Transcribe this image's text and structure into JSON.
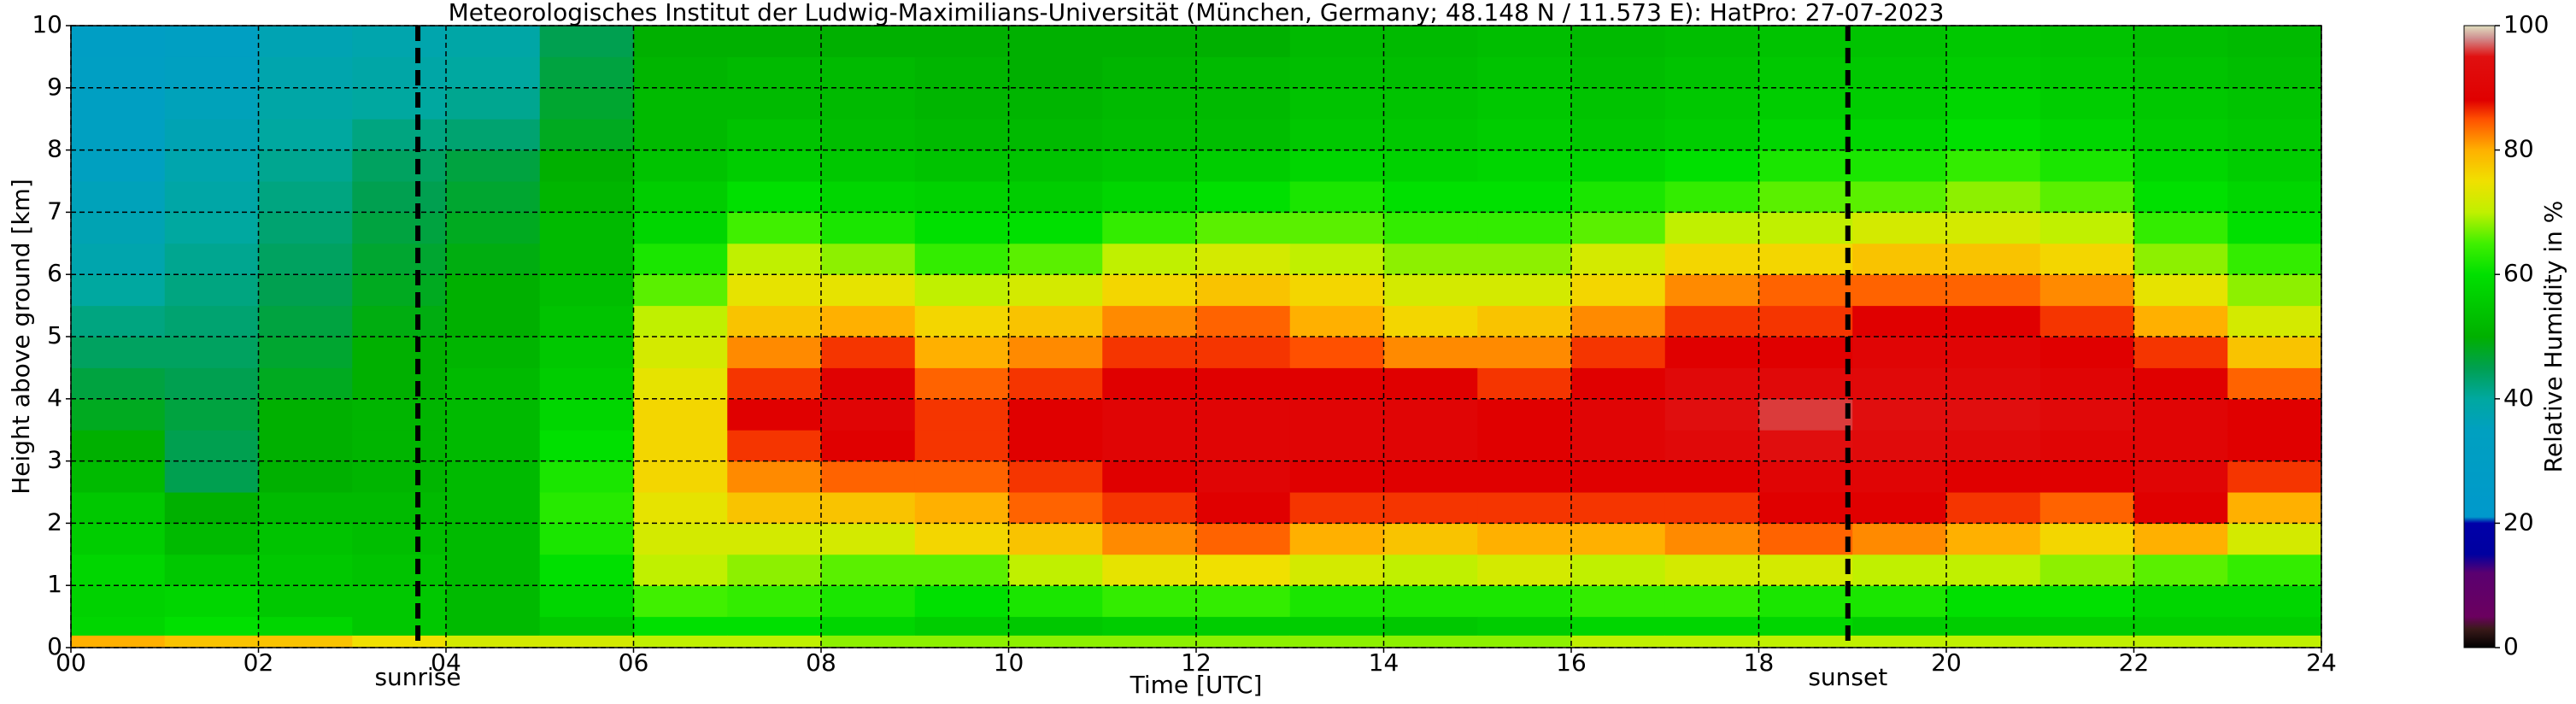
{
  "chart_data": {
    "type": "heatmap",
    "title": "Meteorologisches Institut der Ludwig-Maximilians-Universität (München, Germany; 48.148 N / 11.573 E):    HatPro: 27-07-2023",
    "x_label": "Time [UTC]",
    "y_label": "Height above ground [km]",
    "colorbar_label": "Relative Humidity in %",
    "x": [
      0,
      1,
      2,
      3,
      4,
      5,
      6,
      7,
      8,
      9,
      10,
      11,
      12,
      13,
      14,
      15,
      16,
      17,
      18,
      19,
      20,
      21,
      22,
      23,
      24
    ],
    "y": [
      0,
      0.2,
      0.5,
      1,
      1.5,
      2,
      2.5,
      3,
      3.5,
      4,
      4.5,
      5,
      5.5,
      6,
      6.5,
      7,
      7.5,
      8,
      8.5,
      9,
      9.5,
      10
    ],
    "z": [
      [
        80,
        58,
        57,
        58,
        56,
        55,
        52,
        50,
        48,
        46,
        44,
        42,
        40,
        38,
        37,
        36,
        35,
        34,
        33,
        32,
        30
      ],
      [
        78,
        60,
        58,
        55,
        52,
        50,
        45,
        45,
        46,
        45,
        44,
        43,
        42,
        41,
        40,
        39,
        38,
        37,
        36,
        35,
        33
      ],
      [
        78,
        58,
        55,
        55,
        54,
        52,
        50,
        50,
        50,
        48,
        47,
        46,
        45,
        44,
        43,
        42,
        41,
        40,
        39,
        38,
        37
      ],
      [
        75,
        55,
        55,
        54,
        53,
        52,
        51,
        51,
        51,
        50,
        50,
        49,
        48,
        47,
        46,
        45,
        44,
        42,
        40,
        39,
        38
      ],
      [
        72,
        52,
        52,
        52,
        52,
        52,
        52,
        52,
        52,
        52,
        51,
        50,
        50,
        49,
        48,
        47,
        46,
        43,
        41,
        40,
        39
      ],
      [
        72,
        55,
        58,
        60,
        62,
        63,
        62,
        60,
        58,
        56,
        55,
        54,
        53,
        52,
        52,
        51,
        50,
        48,
        47,
        46,
        45
      ],
      [
        70,
        60,
        65,
        70,
        72,
        74,
        76,
        76,
        76,
        74,
        72,
        70,
        66,
        62,
        58,
        56,
        54,
        52,
        52,
        51,
        50
      ],
      [
        70,
        60,
        64,
        68,
        72,
        78,
        82,
        86,
        88,
        86,
        82,
        78,
        74,
        70,
        65,
        60,
        56,
        54,
        52,
        52,
        50
      ],
      [
        68,
        58,
        62,
        66,
        72,
        78,
        84,
        88,
        90,
        89,
        86,
        80,
        74,
        68,
        62,
        58,
        55,
        53,
        52,
        52,
        50
      ],
      [
        68,
        56,
        60,
        66,
        76,
        80,
        84,
        86,
        86,
        84,
        80,
        76,
        70,
        64,
        60,
        57,
        54,
        52,
        51,
        51,
        50
      ],
      [
        68,
        55,
        62,
        70,
        78,
        84,
        86,
        88,
        88,
        86,
        82,
        78,
        72,
        66,
        60,
        56,
        54,
        52,
        51,
        50,
        50
      ],
      [
        68,
        56,
        64,
        74,
        82,
        86,
        88,
        90,
        90,
        88,
        86,
        82,
        76,
        70,
        64,
        58,
        55,
        53,
        52,
        51,
        50
      ],
      [
        68,
        56,
        64,
        75,
        84,
        88,
        90,
        90,
        90,
        88,
        86,
        84,
        78,
        72,
        66,
        60,
        56,
        53,
        52,
        52,
        50
      ],
      [
        68,
        56,
        62,
        72,
        80,
        86,
        88,
        90,
        90,
        88,
        85,
        80,
        76,
        70,
        66,
        62,
        58,
        55,
        54,
        53,
        52
      ],
      [
        68,
        55,
        62,
        70,
        78,
        86,
        88,
        90,
        90,
        88,
        82,
        76,
        72,
        68,
        64,
        60,
        57,
        55,
        54,
        53,
        52
      ],
      [
        68,
        56,
        62,
        72,
        80,
        86,
        88,
        88,
        88,
        86,
        82,
        78,
        72,
        68,
        64,
        60,
        58,
        56,
        55,
        54,
        53
      ],
      [
        70,
        58,
        64,
        70,
        80,
        86,
        88,
        90,
        90,
        88,
        86,
        82,
        76,
        72,
        66,
        62,
        58,
        55,
        54,
        53,
        52
      ],
      [
        70,
        58,
        64,
        72,
        82,
        86,
        88,
        92,
        94,
        92,
        88,
        86,
        82,
        76,
        70,
        64,
        60,
        56,
        55,
        54,
        53
      ],
      [
        70,
        58,
        62,
        72,
        84,
        88,
        90,
        94,
        96,
        92,
        88,
        86,
        84,
        76,
        70,
        66,
        62,
        58,
        56,
        55,
        54
      ],
      [
        70,
        56,
        62,
        70,
        82,
        88,
        90,
        93,
        94,
        92,
        90,
        88,
        84,
        78,
        72,
        66,
        62,
        58,
        56,
        55,
        54
      ],
      [
        70,
        56,
        60,
        70,
        80,
        86,
        88,
        92,
        94,
        92,
        90,
        88,
        84,
        78,
        72,
        68,
        64,
        60,
        58,
        56,
        55
      ],
      [
        70,
        56,
        60,
        68,
        76,
        84,
        88,
        90,
        92,
        90,
        88,
        86,
        82,
        76,
        70,
        66,
        62,
        58,
        56,
        55,
        54
      ],
      [
        70,
        56,
        58,
        66,
        80,
        88,
        90,
        90,
        90,
        88,
        86,
        80,
        74,
        68,
        64,
        60,
        58,
        56,
        55,
        54,
        53
      ],
      [
        70,
        56,
        58,
        64,
        72,
        80,
        86,
        88,
        88,
        84,
        78,
        72,
        68,
        64,
        60,
        58,
        56,
        55,
        54,
        53,
        52
      ]
    ],
    "xlim": [
      0,
      24
    ],
    "xticks": [
      {
        "value": 0,
        "label": "00"
      },
      {
        "value": 2,
        "label": "02"
      },
      {
        "value": 4,
        "label": "04"
      },
      {
        "value": 6,
        "label": "06"
      },
      {
        "value": 8,
        "label": "08"
      },
      {
        "value": 10,
        "label": "10"
      },
      {
        "value": 12,
        "label": "12"
      },
      {
        "value": 14,
        "label": "14"
      },
      {
        "value": 16,
        "label": "16"
      },
      {
        "value": 18,
        "label": "18"
      },
      {
        "value": 20,
        "label": "20"
      },
      {
        "value": 22,
        "label": "22"
      },
      {
        "value": 24,
        "label": "24"
      }
    ],
    "ylim": [
      0,
      10
    ],
    "yticks": [
      0,
      1,
      2,
      3,
      4,
      5,
      6,
      7,
      8,
      9,
      10
    ],
    "clim": [
      0,
      100
    ],
    "cticks": [
      0,
      20,
      40,
      60,
      80,
      100
    ],
    "colorscale": [
      [
        0,
        "#000000"
      ],
      [
        3,
        "#3a1a1a"
      ],
      [
        5,
        "#6b005f"
      ],
      [
        12,
        "#5a0070"
      ],
      [
        15,
        "#0000a0"
      ],
      [
        20,
        "#0000a8"
      ],
      [
        21,
        "#0099cc"
      ],
      [
        35,
        "#00a0c0"
      ],
      [
        40,
        "#00a8a0"
      ],
      [
        45,
        "#00a050"
      ],
      [
        50,
        "#00b000"
      ],
      [
        60,
        "#00e000"
      ],
      [
        65,
        "#40f000"
      ],
      [
        70,
        "#c0f000"
      ],
      [
        75,
        "#f0e000"
      ],
      [
        80,
        "#ffb000"
      ],
      [
        85,
        "#ff5000"
      ],
      [
        88,
        "#e00000"
      ],
      [
        95,
        "#e01010"
      ],
      [
        98,
        "#d09090"
      ],
      [
        100,
        "#e0e0c0"
      ]
    ],
    "grid": true,
    "annotations": [
      {
        "x": 3.7,
        "label": "sunrise"
      },
      {
        "x": 18.95,
        "label": "sunset"
      }
    ]
  }
}
